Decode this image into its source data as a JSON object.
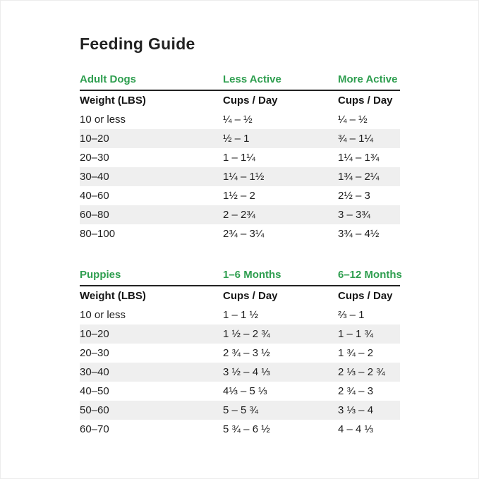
{
  "title": "Feeding Guide",
  "colors": {
    "header_green": "#2e9e4f",
    "text": "#1f1f1f",
    "stripe": "#efefef",
    "rule": "#222222"
  },
  "chart_data": [
    {
      "type": "table",
      "name": "Adult Dogs",
      "columns": [
        "Adult Dogs",
        "Less Active",
        "More Active"
      ],
      "subcolumns": [
        "Weight (LBS)",
        "Cups / Day",
        "Cups / Day"
      ],
      "rows": [
        [
          "10 or less",
          "¼ – ½",
          "¼ – ½"
        ],
        [
          "10–20",
          "½ – 1",
          "¾ – 1¼"
        ],
        [
          "20–30",
          "1 – 1¼",
          "1¼ – 1¾"
        ],
        [
          "30–40",
          "1¼ – 1½",
          "1¾ – 2¼"
        ],
        [
          "40–60",
          "1½ – 2",
          "2½ – 3"
        ],
        [
          "60–80",
          "2 – 2¾",
          "3 – 3¾"
        ],
        [
          "80–100",
          "2¾ – 3¼",
          "3¾ – 4½"
        ]
      ]
    },
    {
      "type": "table",
      "name": "Puppies",
      "columns": [
        "Puppies",
        "1–6 Months",
        "6–12 Months"
      ],
      "subcolumns": [
        "Weight (LBS)",
        "Cups / Day",
        "Cups / Day"
      ],
      "rows": [
        [
          "10 or less",
          "1 – 1 ½",
          "⅔ – 1"
        ],
        [
          "10–20",
          "1 ½ – 2 ¾",
          "1 – 1 ¾"
        ],
        [
          "20–30",
          "2 ¾ – 3 ½",
          "1 ¾ – 2"
        ],
        [
          "30–40",
          "3 ½ – 4 ⅓",
          "2 ⅓ – 2 ¾"
        ],
        [
          "40–50",
          "4⅓ – 5 ⅓",
          "2 ¾ – 3"
        ],
        [
          "50–60",
          "5 – 5 ¾",
          "3 ⅓ – 4"
        ],
        [
          "60–70",
          "5 ¾ – 6 ½",
          "4 – 4 ⅓"
        ]
      ]
    }
  ]
}
